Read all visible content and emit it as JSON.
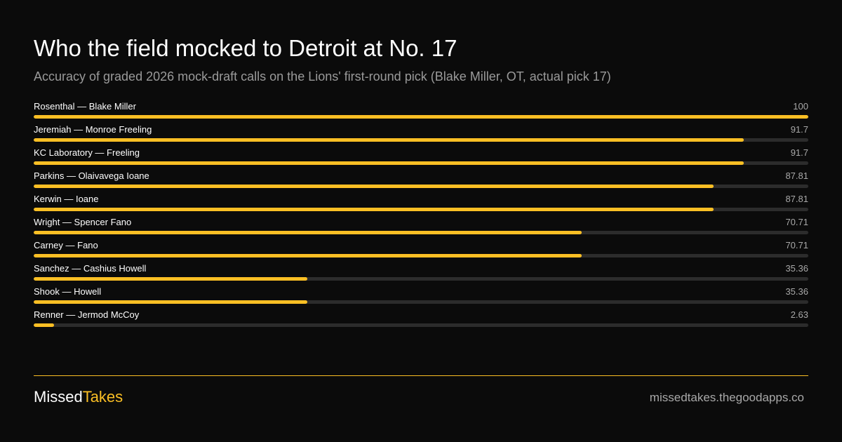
{
  "title": "Who the field mocked to Detroit at No. 17",
  "subtitle": "Accuracy of graded 2026 mock-draft calls on the Lions' first-round pick (Blake Miller, OT, actual pick 17)",
  "colors": {
    "accent": "#fbbf24",
    "track": "#2c2c2c",
    "background": "#0b0b0b"
  },
  "chart_data": {
    "type": "bar",
    "orientation": "horizontal",
    "title": "Who the field mocked to Detroit at No. 17",
    "subtitle": "Accuracy of graded 2026 mock-draft calls on the Lions' first-round pick (Blake Miller, OT, actual pick 17)",
    "xlim": [
      0,
      100
    ],
    "categories": [
      "Rosenthal — Blake Miller",
      "Jeremiah — Monroe Freeling",
      "KC Laboratory — Freeling",
      "Parkins — Olaivavega Ioane",
      "Kerwin — Ioane",
      "Wright — Spencer Fano",
      "Carney — Fano",
      "Sanchez — Cashius Howell",
      "Shook — Howell",
      "Renner — Jermod McCoy"
    ],
    "values": [
      100,
      91.7,
      91.7,
      87.81,
      87.81,
      70.71,
      70.71,
      35.36,
      35.36,
      2.63
    ],
    "value_labels": [
      "100",
      "91.7",
      "91.7",
      "87.81",
      "87.81",
      "70.71",
      "70.71",
      "35.36",
      "35.36",
      "2.63"
    ]
  },
  "footer": {
    "brand_part1": "Missed",
    "brand_part2": "Takes",
    "domain": "missedtakes.thegoodapps.co"
  }
}
